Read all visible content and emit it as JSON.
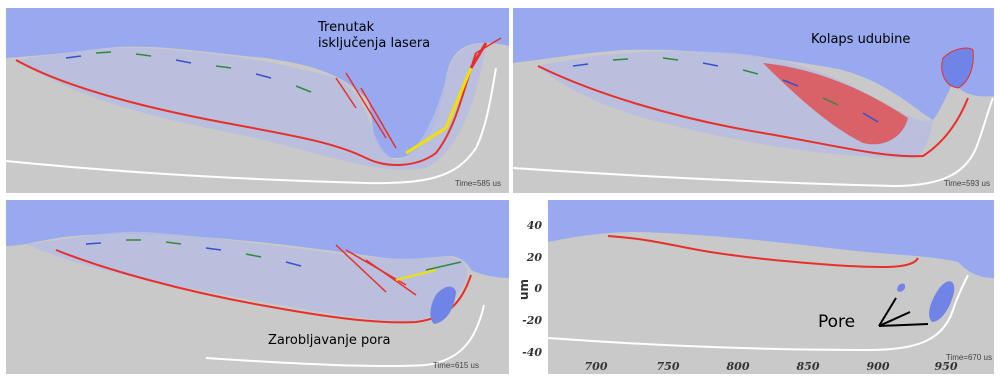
{
  "panels": [
    {
      "label": "Trenutak\nisključenja lasera",
      "time": "Time=585 us"
    },
    {
      "label": "Kolaps udubine",
      "time": "Time=593 us"
    },
    {
      "label": "Zarobljavanje pora",
      "time": "Time=615 us"
    },
    {
      "label": "",
      "time": "Time=670 us"
    }
  ],
  "axes": {
    "y_unit": "um",
    "y_ticks": [
      "40",
      "20",
      "0",
      "-20",
      "-40"
    ],
    "x_ticks": [
      "700",
      "750",
      "800",
      "850",
      "900",
      "950"
    ]
  },
  "annotation": {
    "pore_label": "Pore"
  },
  "colors": {
    "gas": "#98a9f0",
    "metal": "#c9c9c9",
    "melt_boundary": "#e8302a",
    "solid_line": "#ffffff",
    "flow_vectors": [
      "#2f8a3a",
      "#3a4fd0",
      "#e8302a",
      "#f2e100"
    ]
  }
}
